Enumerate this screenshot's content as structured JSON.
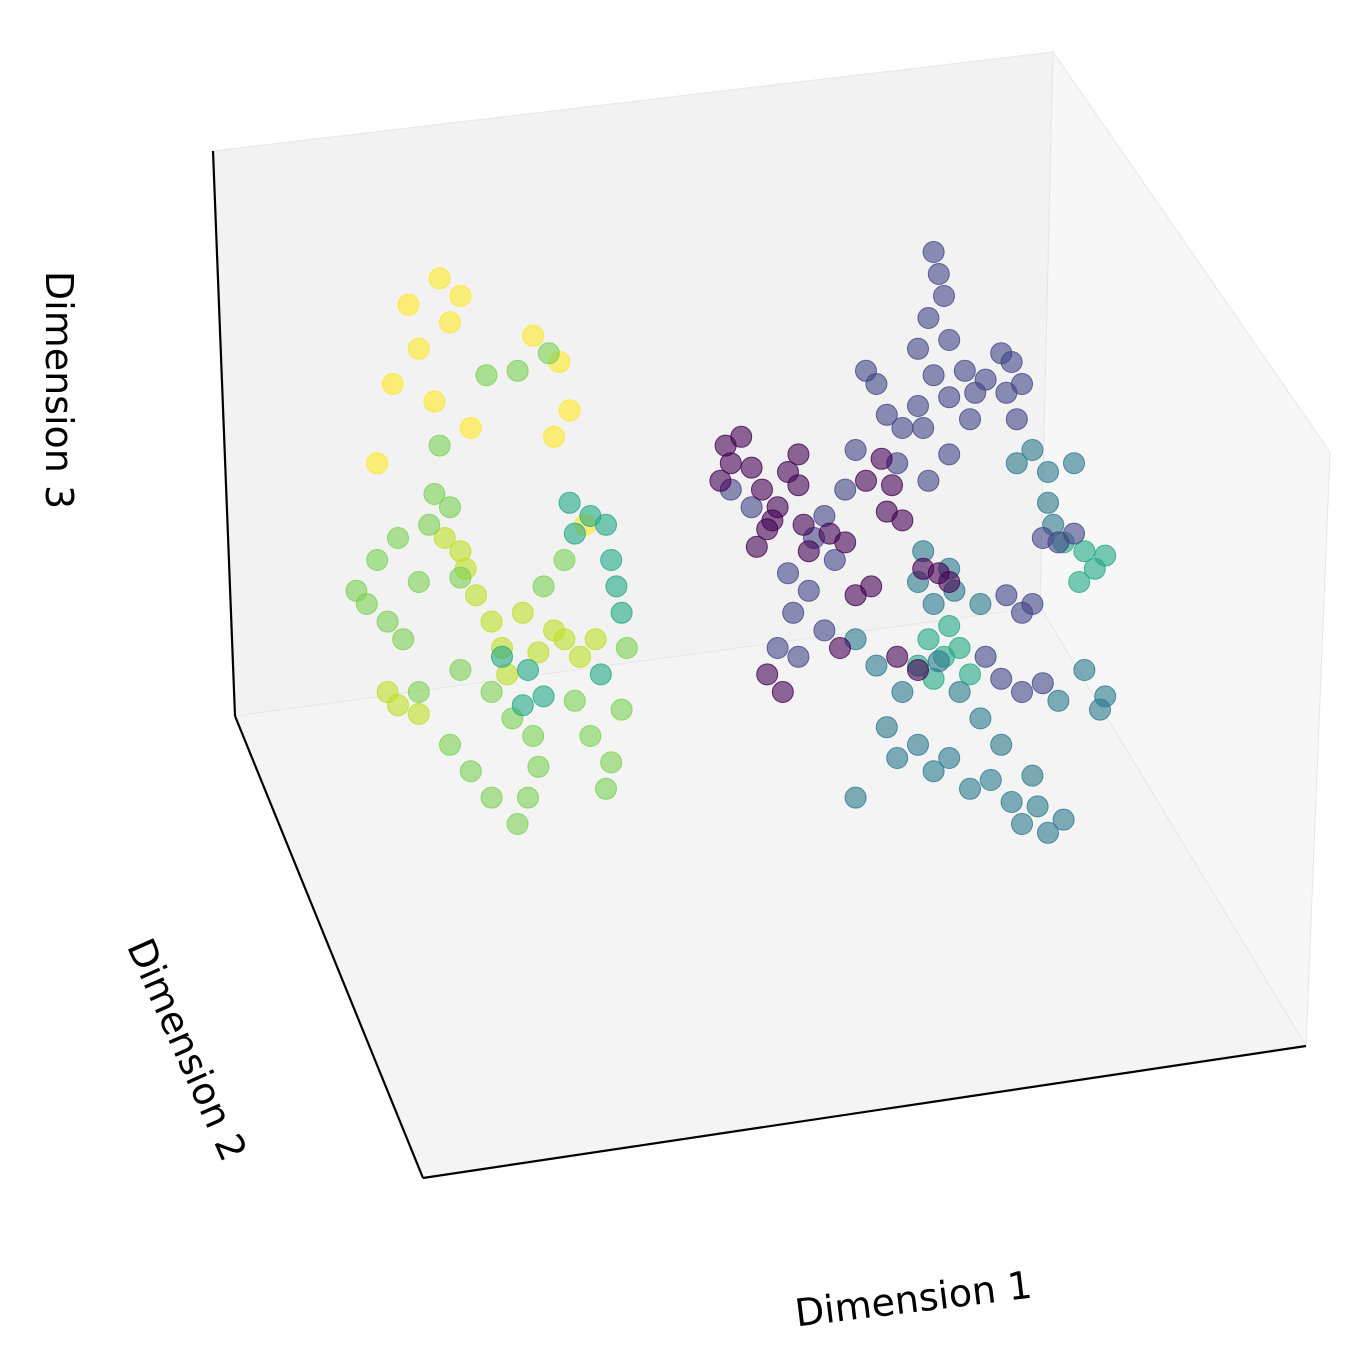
{
  "chart_data": {
    "type": "scatter",
    "projection": "3d",
    "xlabel": "Dimension 1",
    "ylabel": "Dimension 2",
    "zlabel": "Dimension 3",
    "ticks_visible": false,
    "grid": false,
    "colormap": "viridis",
    "marker_opacity": 0.6,
    "pane_colors": {
      "back": "#f2f2f2",
      "side": "#f7f7f7",
      "floor": "#f4f4f4"
    },
    "axis_color": "#000000",
    "clusters": [
      {
        "color": "#fde725",
        "points": [
          [
            -0.62,
            0.64
          ],
          [
            -0.58,
            0.6
          ],
          [
            -0.6,
            0.54
          ],
          [
            -0.66,
            0.48
          ],
          [
            -0.71,
            0.4
          ],
          [
            -0.63,
            0.36
          ],
          [
            -0.56,
            0.3
          ],
          [
            -0.74,
            0.22
          ],
          [
            -0.44,
            0.51
          ],
          [
            -0.39,
            0.45
          ],
          [
            -0.37,
            0.34
          ],
          [
            -0.4,
            0.28
          ],
          [
            -0.34,
            0.08
          ],
          [
            -0.68,
            0.58
          ]
        ]
      },
      {
        "color": "#bddf26",
        "points": [
          [
            -0.61,
            0.05
          ],
          [
            -0.57,
            -0.02
          ],
          [
            -0.55,
            -0.08
          ],
          [
            -0.52,
            -0.14
          ],
          [
            -0.5,
            -0.2
          ],
          [
            -0.49,
            -0.26
          ],
          [
            -0.43,
            -0.21
          ],
          [
            -0.4,
            -0.16
          ],
          [
            -0.38,
            -0.18
          ],
          [
            -0.35,
            -0.22
          ],
          [
            -0.32,
            -0.18
          ],
          [
            -0.72,
            -0.3
          ],
          [
            -0.7,
            -0.33
          ],
          [
            -0.66,
            -0.35
          ],
          [
            -0.58,
            0.02
          ],
          [
            -0.46,
            -0.12
          ]
        ]
      },
      {
        "color": "#7ad151",
        "points": [
          [
            -0.66,
            -0.3
          ],
          [
            -0.58,
            -0.25
          ],
          [
            -0.52,
            -0.3
          ],
          [
            -0.48,
            -0.36
          ],
          [
            -0.44,
            -0.4
          ],
          [
            -0.43,
            -0.47
          ],
          [
            -0.45,
            -0.54
          ],
          [
            -0.47,
            -0.6
          ],
          [
            -0.36,
            -0.32
          ],
          [
            -0.33,
            -0.4
          ],
          [
            -0.29,
            -0.46
          ],
          [
            -0.3,
            -0.52
          ],
          [
            -0.7,
            0.05
          ],
          [
            -0.64,
            0.08
          ],
          [
            -0.6,
            0.12
          ],
          [
            -0.66,
            -0.05
          ],
          [
            -0.58,
            -0.04
          ],
          [
            -0.53,
            0.42
          ],
          [
            -0.47,
            0.43
          ],
          [
            -0.41,
            0.47
          ],
          [
            -0.62,
            0.26
          ],
          [
            -0.63,
            0.15
          ],
          [
            -0.78,
            -0.07
          ],
          [
            -0.76,
            -0.1
          ],
          [
            -0.72,
            -0.14
          ],
          [
            -0.69,
            -0.18
          ],
          [
            -0.74,
            0.0
          ],
          [
            -0.6,
            -0.42
          ],
          [
            -0.56,
            -0.48
          ],
          [
            -0.52,
            -0.54
          ],
          [
            -0.27,
            -0.34
          ],
          [
            -0.26,
            -0.2
          ],
          [
            -0.42,
            -0.06
          ],
          [
            -0.38,
            0.0
          ]
        ]
      },
      {
        "color": "#22a884",
        "points": [
          [
            -0.37,
            0.13
          ],
          [
            -0.33,
            0.1
          ],
          [
            -0.36,
            0.06
          ],
          [
            -0.3,
            0.08
          ],
          [
            -0.29,
            0.0
          ],
          [
            -0.28,
            -0.06
          ],
          [
            -0.31,
            -0.26
          ],
          [
            -0.45,
            -0.25
          ],
          [
            -0.42,
            -0.31
          ],
          [
            -0.46,
            -0.33
          ],
          [
            -0.5,
            -0.22
          ],
          [
            -0.27,
            -0.12
          ],
          [
            0.32,
            -0.18
          ],
          [
            0.35,
            -0.22
          ],
          [
            0.38,
            -0.2
          ],
          [
            0.3,
            -0.24
          ],
          [
            0.33,
            -0.27
          ],
          [
            0.4,
            -0.26
          ],
          [
            0.58,
            0.04
          ],
          [
            0.62,
            0.02
          ],
          [
            0.64,
            -0.02
          ],
          [
            0.66,
            0.01
          ],
          [
            0.61,
            -0.05
          ],
          [
            0.36,
            -0.15
          ]
        ]
      },
      {
        "color": "#2a788e",
        "points": [
          [
            0.27,
            -0.3
          ],
          [
            0.24,
            -0.38
          ],
          [
            0.26,
            -0.45
          ],
          [
            0.3,
            -0.42
          ],
          [
            0.33,
            -0.48
          ],
          [
            0.36,
            -0.45
          ],
          [
            0.4,
            -0.52
          ],
          [
            0.44,
            -0.5
          ],
          [
            0.48,
            -0.55
          ],
          [
            0.5,
            -0.6
          ],
          [
            0.53,
            -0.56
          ],
          [
            0.55,
            -0.62
          ],
          [
            0.58,
            -0.59
          ],
          [
            0.52,
            -0.49
          ],
          [
            0.46,
            -0.42
          ],
          [
            0.42,
            -0.36
          ],
          [
            0.38,
            -0.3
          ],
          [
            0.34,
            -0.23
          ],
          [
            0.22,
            -0.24
          ],
          [
            0.18,
            -0.18
          ],
          [
            0.18,
            -0.54
          ],
          [
            0.52,
            0.25
          ],
          [
            0.55,
            0.2
          ],
          [
            0.49,
            0.22
          ],
          [
            0.6,
            0.22
          ],
          [
            0.55,
            0.13
          ],
          [
            0.56,
            0.08
          ],
          [
            0.62,
            -0.25
          ],
          [
            0.66,
            -0.31
          ],
          [
            0.65,
            -0.34
          ],
          [
            0.57,
            -0.32
          ],
          [
            0.3,
            -0.05
          ],
          [
            0.33,
            -0.1
          ],
          [
            0.36,
            -0.02
          ],
          [
            0.31,
            0.02
          ],
          [
            0.37,
            -0.07
          ],
          [
            0.42,
            -0.1
          ]
        ]
      },
      {
        "color": "#414487",
        "points": [
          [
            0.33,
            0.7
          ],
          [
            0.34,
            0.65
          ],
          [
            0.35,
            0.6
          ],
          [
            0.32,
            0.55
          ],
          [
            0.3,
            0.48
          ],
          [
            0.36,
            0.5
          ],
          [
            0.33,
            0.42
          ],
          [
            0.36,
            0.37
          ],
          [
            0.3,
            0.35
          ],
          [
            0.27,
            0.3
          ],
          [
            0.22,
            0.4
          ],
          [
            0.2,
            0.43
          ],
          [
            0.24,
            0.33
          ],
          [
            0.31,
            0.3
          ],
          [
            0.39,
            0.43
          ],
          [
            0.41,
            0.38
          ],
          [
            0.43,
            0.41
          ],
          [
            0.4,
            0.32
          ],
          [
            0.48,
            0.45
          ],
          [
            0.5,
            0.4
          ],
          [
            0.47,
            0.38
          ],
          [
            0.49,
            0.32
          ],
          [
            0.46,
            0.47
          ],
          [
            0.36,
            0.24
          ],
          [
            0.32,
            0.18
          ],
          [
            0.26,
            0.22
          ],
          [
            0.18,
            0.25
          ],
          [
            0.16,
            0.16
          ],
          [
            0.12,
            0.1
          ],
          [
            0.1,
            0.05
          ],
          [
            0.14,
            0.0
          ],
          [
            0.09,
            -0.07
          ],
          [
            0.06,
            -0.12
          ],
          [
            0.03,
            -0.2
          ],
          [
            0.07,
            -0.22
          ],
          [
            0.12,
            -0.16
          ],
          [
            0.05,
            -0.03
          ],
          [
            -0.02,
            0.12
          ],
          [
            -0.06,
            0.16
          ],
          [
            0.57,
            0.04
          ],
          [
            0.6,
            0.06
          ],
          [
            0.54,
            0.05
          ],
          [
            0.47,
            -0.08
          ],
          [
            0.5,
            -0.12
          ],
          [
            0.52,
            -0.1
          ],
          [
            0.43,
            -0.22
          ],
          [
            0.46,
            -0.27
          ],
          [
            0.5,
            -0.3
          ],
          [
            0.54,
            -0.28
          ]
        ]
      },
      {
        "color": "#440154",
        "points": [
          [
            -0.07,
            0.26
          ],
          [
            -0.04,
            0.28
          ],
          [
            -0.06,
            0.22
          ],
          [
            -0.02,
            0.21
          ],
          [
            -0.08,
            0.18
          ],
          [
            0.0,
            0.16
          ],
          [
            0.05,
            0.2
          ],
          [
            0.07,
            0.17
          ],
          [
            0.03,
            0.12
          ],
          [
            0.02,
            0.09
          ],
          [
            0.08,
            0.08
          ],
          [
            0.2,
            0.18
          ],
          [
            0.23,
            0.23
          ],
          [
            0.25,
            0.17
          ],
          [
            0.27,
            0.09
          ],
          [
            0.24,
            0.11
          ],
          [
            0.09,
            0.02
          ],
          [
            0.13,
            0.06
          ],
          [
            0.16,
            0.04
          ],
          [
            0.31,
            -0.02
          ],
          [
            0.34,
            -0.03
          ],
          [
            0.36,
            -0.05
          ],
          [
            0.26,
            -0.22
          ],
          [
            0.3,
            -0.25
          ],
          [
            0.07,
            0.24
          ],
          [
            0.01,
            0.07
          ],
          [
            -0.01,
            0.03
          ],
          [
            0.18,
            -0.08
          ],
          [
            0.21,
            -0.06
          ],
          [
            0.15,
            -0.2
          ],
          [
            0.01,
            -0.26
          ],
          [
            0.04,
            -0.3
          ]
        ]
      }
    ]
  }
}
